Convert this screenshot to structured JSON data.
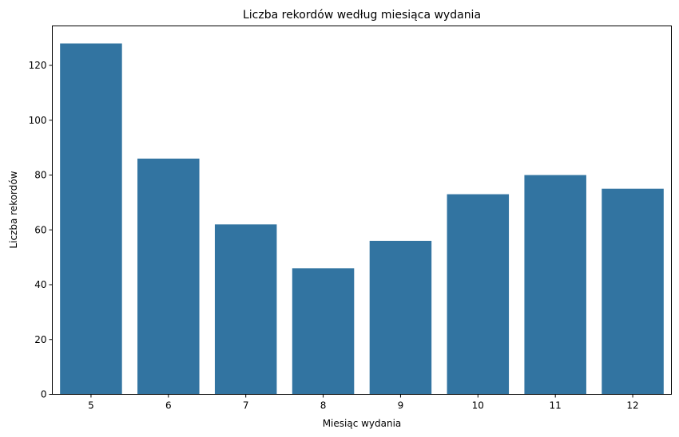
{
  "chart_data": {
    "type": "bar",
    "title": "Liczba rekordów według miesiąca wydania",
    "xlabel": "Miesiąc wydania",
    "ylabel": "Liczba rekordów",
    "categories": [
      "5",
      "6",
      "7",
      "8",
      "9",
      "10",
      "11",
      "12"
    ],
    "values": [
      128,
      86,
      62,
      46,
      56,
      73,
      80,
      75
    ],
    "ylim": [
      0,
      134.4
    ],
    "yticks": [
      0,
      20,
      40,
      60,
      80,
      100,
      120
    ],
    "grid": false,
    "legend": "none",
    "bar_color": "#3274a1"
  }
}
